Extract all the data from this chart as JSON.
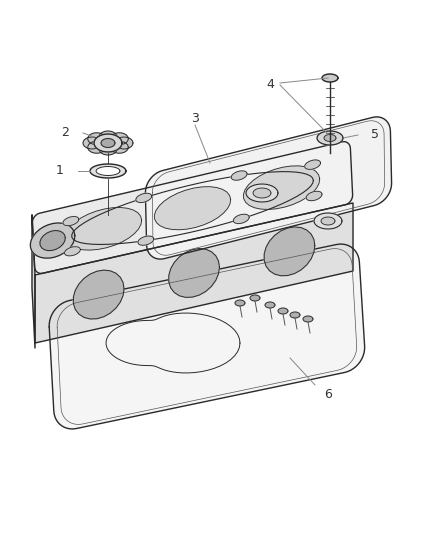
{
  "background_color": "#ffffff",
  "line_color": "#2a2a2a",
  "fig_width": 4.38,
  "fig_height": 5.33,
  "dpi": 100,
  "label_color": "#333333",
  "leader_color": "#888888"
}
